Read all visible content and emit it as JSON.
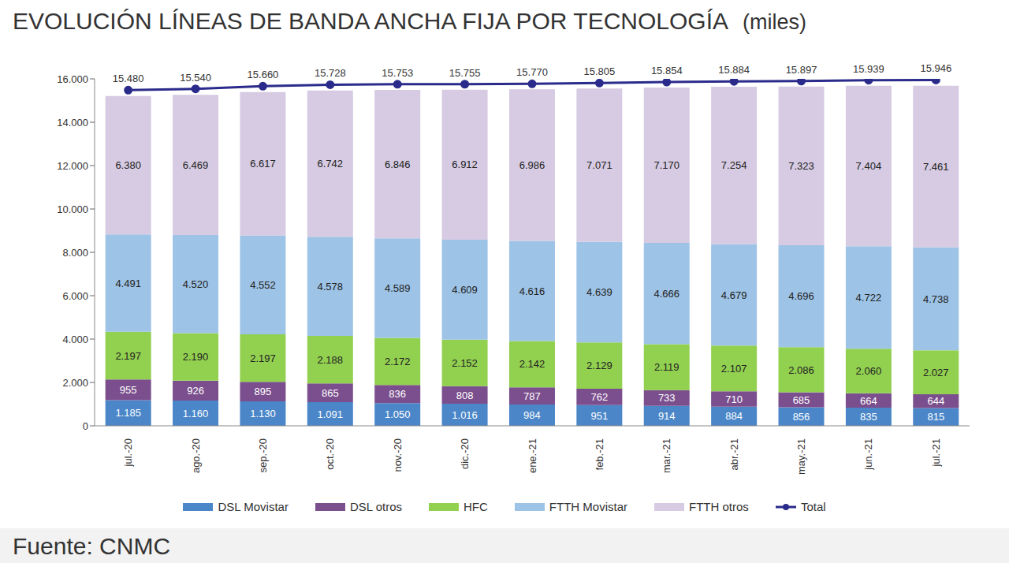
{
  "chart_data": {
    "type": "bar",
    "title": "EVOLUCIÓN LÍNEAS DE BANDA ANCHA FIJA POR TECNOLOGÍA",
    "subtitle": "(miles)",
    "annotations": [
      "Fuente: CNMC"
    ],
    "categories": [
      "jul.-20",
      "ago.-20",
      "sep.-20",
      "oct.-20",
      "nov.-20",
      "dic.-20",
      "ene.-21",
      "feb.-21",
      "mar.-21",
      "abr.-21",
      "may.-21",
      "jun.-21",
      "jul.-21"
    ],
    "stacked": true,
    "data_labels": true,
    "grid": false,
    "legend": "bottom",
    "ylim": [
      0,
      16000
    ],
    "yticks": [
      {
        "value": 0,
        "label": "0"
      },
      {
        "value": 2000,
        "label": "2.000"
      },
      {
        "value": 4000,
        "label": "4.000"
      },
      {
        "value": 6000,
        "label": "6.000"
      },
      {
        "value": 8000,
        "label": "8.000"
      },
      {
        "value": 10000,
        "label": "10.000"
      },
      {
        "value": 12000,
        "label": "12.000"
      },
      {
        "value": 14000,
        "label": "14.000"
      },
      {
        "value": 16000,
        "label": "16.000"
      }
    ],
    "series": [
      {
        "name": "DSL Movistar",
        "type": "bar",
        "color": "#4a86c8",
        "values": [
          1185,
          1160,
          1130,
          1091,
          1050,
          1016,
          984,
          951,
          914,
          884,
          856,
          835,
          815
        ],
        "value_labels": [
          "1.185",
          "1.160",
          "1.130",
          "1.091",
          "1.050",
          "1.016",
          "984",
          "951",
          "914",
          "884",
          "856",
          "835",
          "815"
        ]
      },
      {
        "name": "DSL otros",
        "type": "bar",
        "color": "#7b4f8e",
        "values": [
          955,
          926,
          895,
          865,
          836,
          808,
          787,
          762,
          733,
          710,
          685,
          664,
          644
        ],
        "value_labels": [
          "955",
          "926",
          "895",
          "865",
          "836",
          "808",
          "787",
          "762",
          "733",
          "710",
          "685",
          "664",
          "644"
        ]
      },
      {
        "name": "HFC",
        "type": "bar",
        "color": "#92d050",
        "values": [
          2197,
          2190,
          2197,
          2188,
          2172,
          2152,
          2142,
          2129,
          2119,
          2107,
          2086,
          2060,
          2027
        ],
        "value_labels": [
          "2.197",
          "2.190",
          "2.197",
          "2.188",
          "2.172",
          "2.152",
          "2.142",
          "2.129",
          "2.119",
          "2.107",
          "2.086",
          "2.060",
          "2.027"
        ]
      },
      {
        "name": "FTTH Movistar",
        "type": "bar",
        "color": "#9dc3e6",
        "values": [
          4491,
          4520,
          4552,
          4578,
          4589,
          4609,
          4616,
          4639,
          4666,
          4679,
          4696,
          4722,
          4738
        ],
        "value_labels": [
          "4.491",
          "4.520",
          "4.552",
          "4.578",
          "4.589",
          "4.609",
          "4.616",
          "4.639",
          "4.666",
          "4.679",
          "4.696",
          "4.722",
          "4.738"
        ]
      },
      {
        "name": "FTTH otros",
        "type": "bar",
        "color": "#d6cbe3",
        "values": [
          6380,
          6469,
          6617,
          6742,
          6846,
          6912,
          6986,
          7071,
          7170,
          7254,
          7323,
          7404,
          7461
        ],
        "value_labels": [
          "6.380",
          "6.469",
          "6.617",
          "6.742",
          "6.846",
          "6.912",
          "6.986",
          "7.071",
          "7.170",
          "7.254",
          "7.323",
          "7.404",
          "7.461"
        ]
      },
      {
        "name": "Total",
        "type": "line",
        "color": "#2b2b8c",
        "marker": "circle",
        "values": [
          15480,
          15540,
          15660,
          15728,
          15753,
          15755,
          15770,
          15805,
          15854,
          15884,
          15897,
          15939,
          15946
        ],
        "value_labels": [
          "15.480",
          "15.540",
          "15.660",
          "15.728",
          "15.753",
          "15.755",
          "15.770",
          "15.805",
          "15.854",
          "15.884",
          "15.897",
          "15.939",
          "15.946"
        ]
      }
    ]
  }
}
